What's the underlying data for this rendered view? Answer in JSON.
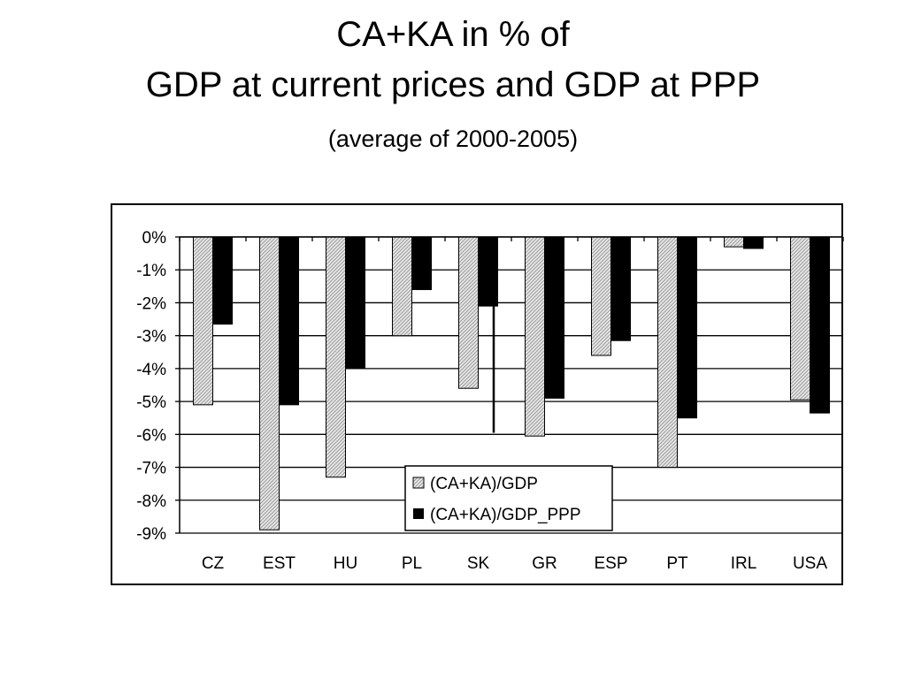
{
  "header": {
    "title_line1": "CA+KA in % of",
    "title_line2": "GDP at current prices and GDP at PPP",
    "subtitle": "(average of 2000-2005)"
  },
  "chart_data": {
    "type": "bar",
    "categories": [
      "CZ",
      "EST",
      "HU",
      "PL",
      "SK",
      "GR",
      "ESP",
      "PT",
      "IRL",
      "USA"
    ],
    "series": [
      {
        "name": "(CA+KA)/GDP",
        "values": [
          -5.1,
          -8.9,
          -7.3,
          -3.0,
          -4.6,
          -6.05,
          -3.6,
          -7.0,
          -0.3,
          -4.95
        ],
        "pattern": "hatched-gray"
      },
      {
        "name": "(CA+KA)/GDP_PPP",
        "values": [
          -2.65,
          -5.1,
          -4.0,
          -1.6,
          -2.1,
          -4.9,
          -3.15,
          -5.5,
          -0.35,
          -5.35
        ],
        "color": "#000000"
      }
    ],
    "y_ticks": [
      "0%",
      "-1%",
      "-2%",
      "-3%",
      "-4%",
      "-5%",
      "-6%",
      "-7%",
      "-8%",
      "-9%"
    ],
    "ylim": [
      -9,
      0
    ],
    "grid": true,
    "legend_position": "bottom-center"
  }
}
